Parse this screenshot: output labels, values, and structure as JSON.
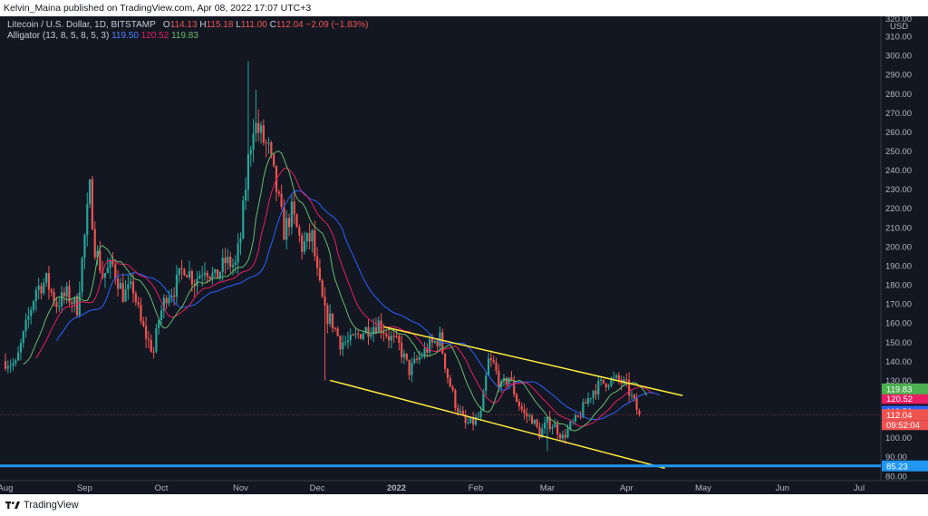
{
  "header": {
    "publisher": "Kelvin_Maina published on TradingView.com, Apr 08, 2022 17:07 UTC+3"
  },
  "legend": {
    "symbol": "Litecoin / U.S. Dollar, 1D, BITSTAMP",
    "o_label": "O",
    "o": "114.13",
    "h_label": "H",
    "h": "115.18",
    "l_label": "L",
    "l": "111.00",
    "c_label": "C",
    "c": "112.04",
    "change": "−2.09 (−1.83%)",
    "indicator": "Alligator (13, 8, 5, 8, 5, 3)",
    "jaw": "119.50",
    "teeth": "120.52",
    "lips": "119.83"
  },
  "footer": {
    "brand": "TradingView"
  },
  "chart_data": {
    "type": "candlestick",
    "currency_label": "USD",
    "y_axis_top_label": "320.00",
    "ylim": [
      78,
      320
    ],
    "y_ticks": [
      310,
      300,
      290,
      280,
      270,
      260,
      250,
      240,
      230,
      220,
      210,
      200,
      190,
      180,
      170,
      160,
      150,
      140,
      130,
      120,
      110,
      100,
      90,
      80
    ],
    "x_ticks": [
      {
        "label": "Aug",
        "day": 0
      },
      {
        "label": "Sep",
        "day": 31
      },
      {
        "label": "Oct",
        "day": 61
      },
      {
        "label": "Nov",
        "day": 92
      },
      {
        "label": "Dec",
        "day": 122
      },
      {
        "label": "2022",
        "day": 153
      },
      {
        "label": "Feb",
        "day": 184
      },
      {
        "label": "Mar",
        "day": 212
      },
      {
        "label": "Apr",
        "day": 243
      },
      {
        "label": "May",
        "day": 273
      },
      {
        "label": "Jun",
        "day": 304
      },
      {
        "label": "Jul",
        "day": 334
      }
    ],
    "day_range": [
      0,
      354
    ],
    "close_path": [
      [
        0,
        140
      ],
      [
        4,
        138
      ],
      [
        8,
        158
      ],
      [
        12,
        178
      ],
      [
        16,
        182
      ],
      [
        20,
        170
      ],
      [
        24,
        175
      ],
      [
        28,
        168
      ],
      [
        31,
        205
      ],
      [
        33,
        230
      ],
      [
        35,
        200
      ],
      [
        38,
        185
      ],
      [
        42,
        190
      ],
      [
        46,
        175
      ],
      [
        50,
        178
      ],
      [
        53,
        160
      ],
      [
        56,
        150
      ],
      [
        58,
        145
      ],
      [
        60,
        162
      ],
      [
        63,
        175
      ],
      [
        66,
        178
      ],
      [
        70,
        190
      ],
      [
        74,
        182
      ],
      [
        78,
        190
      ],
      [
        82,
        183
      ],
      [
        86,
        192
      ],
      [
        90,
        190
      ],
      [
        92,
        205
      ],
      [
        95,
        245
      ],
      [
        97,
        265
      ],
      [
        100,
        258
      ],
      [
        103,
        250
      ],
      [
        106,
        230
      ],
      [
        109,
        208
      ],
      [
        112,
        218
      ],
      [
        116,
        200
      ],
      [
        120,
        205
      ],
      [
        122,
        185
      ],
      [
        125,
        165
      ],
      [
        128,
        160
      ],
      [
        131,
        150
      ],
      [
        135,
        150
      ],
      [
        139,
        155
      ],
      [
        143,
        158
      ],
      [
        146,
        160
      ],
      [
        150,
        153
      ],
      [
        154,
        148
      ],
      [
        158,
        135
      ],
      [
        162,
        142
      ],
      [
        166,
        148
      ],
      [
        170,
        152
      ],
      [
        173,
        132
      ],
      [
        176,
        118
      ],
      [
        180,
        107
      ],
      [
        183,
        108
      ],
      [
        186,
        112
      ],
      [
        189,
        140
      ],
      [
        191,
        138
      ],
      [
        194,
        126
      ],
      [
        197,
        132
      ],
      [
        200,
        120
      ],
      [
        203,
        112
      ],
      [
        206,
        110
      ],
      [
        209,
        102
      ],
      [
        212,
        108
      ],
      [
        215,
        106
      ],
      [
        218,
        100
      ],
      [
        221,
        106
      ],
      [
        224,
        110
      ],
      [
        227,
        118
      ],
      [
        230,
        125
      ],
      [
        233,
        128
      ],
      [
        236,
        130
      ],
      [
        240,
        130
      ],
      [
        243,
        127
      ],
      [
        246,
        118
      ],
      [
        248,
        112
      ]
    ],
    "candle_count": 249,
    "last_candle": {
      "open": 114.13,
      "high": 115.18,
      "low": 111.0,
      "close": 112.04
    },
    "alligator": {
      "jaw_color": "#2962ff",
      "teeth_color": "#e91e63",
      "lips_color": "#66bb6a"
    },
    "channel_lines": [
      {
        "from": [
          148,
          158
        ],
        "to": [
          265,
          122
        ],
        "color": "#ffeb3b"
      },
      {
        "from": [
          127,
          130
        ],
        "to": [
          258,
          84
        ],
        "color": "#ffeb3b"
      }
    ],
    "horizontal_line": {
      "value": 85.23,
      "color": "#2196f3"
    },
    "price_tags": [
      {
        "label": "120.52",
        "value": 120.52,
        "color": "#e91e63"
      },
      {
        "label": "119.83",
        "value": 119.83,
        "color": "#4caf50",
        "offset": -1
      },
      {
        "label": "119.50",
        "value": 119.5,
        "color": "#2962ff",
        "offset": 1
      },
      {
        "label": "112.04",
        "value": 112.04,
        "color": "#ef5350"
      },
      {
        "label": "85.23",
        "value": 85.23,
        "color": "#2196f3"
      }
    ],
    "countdown": "09:52:04",
    "up_color": "#26a69a",
    "down_color": "#ef5350"
  }
}
